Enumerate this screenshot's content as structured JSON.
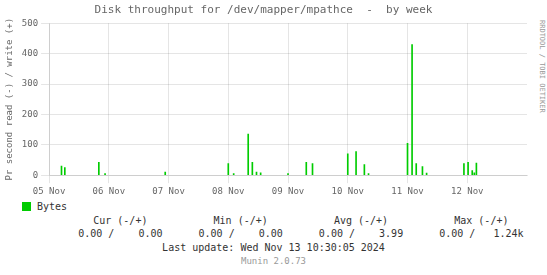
{
  "chart_data": {
    "type": "stem",
    "title": "Disk throughput for /dev/mapper/mpathce  -  by week",
    "ylabel": "Pr second read (-) / write (+)",
    "x": [
      30,
      38,
      120,
      135,
      280,
      432,
      445,
      480,
      490,
      500,
      510,
      576,
      620,
      635,
      720,
      740,
      760,
      770,
      864,
      875,
      885,
      900,
      910,
      1000,
      1010,
      1020,
      1025,
      1030
    ],
    "series": [
      {
        "name": "Bytes",
        "color": "#00cc00",
        "values": [
          30,
          25,
          42,
          5,
          10,
          38,
          5,
          135,
          42,
          10,
          8,
          5,
          42,
          38,
          70,
          78,
          35,
          5,
          105,
          430,
          38,
          28,
          7,
          38,
          42,
          15,
          8,
          40
        ]
      }
    ],
    "xlim": [
      0,
      1152
    ],
    "xticks": [
      {
        "value": 0,
        "label": "05 Nov"
      },
      {
        "value": 144,
        "label": "06 Nov"
      },
      {
        "value": 288,
        "label": "07 Nov"
      },
      {
        "value": 432,
        "label": "08 Nov"
      },
      {
        "value": 576,
        "label": "09 Nov"
      },
      {
        "value": 720,
        "label": "10 Nov"
      },
      {
        "value": 864,
        "label": "11 Nov"
      },
      {
        "value": 1008,
        "label": "12 Nov"
      }
    ],
    "ylim": [
      0,
      500
    ],
    "yticks": [
      0,
      100,
      200,
      300,
      400,
      500
    ],
    "grid": true,
    "legend": "bottom",
    "annotations": {
      "sidebar": "RRDTOOL / TOBI OETIKER",
      "stats": [
        {
          "header": "Cur (-/+)",
          "value": "0.00 /    0.00"
        },
        {
          "header": "Min (-/+)",
          "value": "0.00 /    0.00"
        },
        {
          "header": "Avg (-/+)",
          "value": "0.00 /    3.99"
        },
        {
          "header": "Max (-/+)",
          "value": "0.00 /   1.24k"
        }
      ],
      "footer": [
        "Last update: Wed Nov 13 10:30:05 2024",
        "Munin 2.0.73"
      ]
    }
  }
}
